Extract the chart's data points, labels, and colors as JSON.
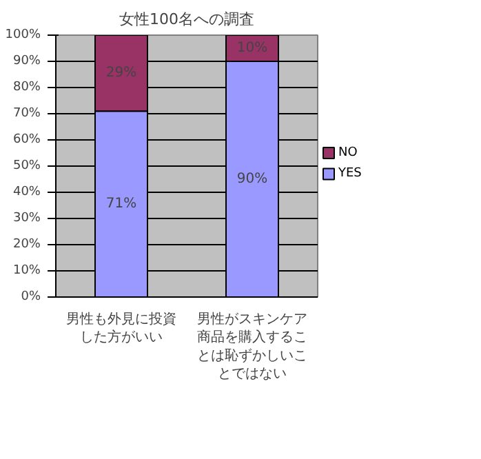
{
  "chart_data": {
    "type": "bar",
    "title": "女性100名への調査",
    "stacked": true,
    "categories": [
      "男性も外見に投資した方がいい",
      "男性がスキンケア商品を購入することは恥ずかしいことではない"
    ],
    "series": [
      {
        "name": "YES",
        "color": "#9999ff",
        "values": [
          71,
          90
        ],
        "value_labels": [
          "71%",
          "90%"
        ]
      },
      {
        "name": "NO",
        "color": "#993366",
        "values": [
          29,
          10
        ],
        "value_labels": [
          "29%",
          "10%"
        ]
      }
    ],
    "ylim": [
      0,
      100
    ],
    "yticks": [
      {
        "value": 0,
        "label": "0%"
      },
      {
        "value": 10,
        "label": "10%"
      },
      {
        "value": 20,
        "label": "20%"
      },
      {
        "value": 30,
        "label": "30%"
      },
      {
        "value": 40,
        "label": "40%"
      },
      {
        "value": 50,
        "label": "50%"
      },
      {
        "value": 60,
        "label": "60%"
      },
      {
        "value": 70,
        "label": "70%"
      },
      {
        "value": 80,
        "label": "80%"
      },
      {
        "value": 90,
        "label": "90%"
      },
      {
        "value": 100,
        "label": "100%"
      }
    ],
    "grid": "y",
    "legend": "right"
  }
}
